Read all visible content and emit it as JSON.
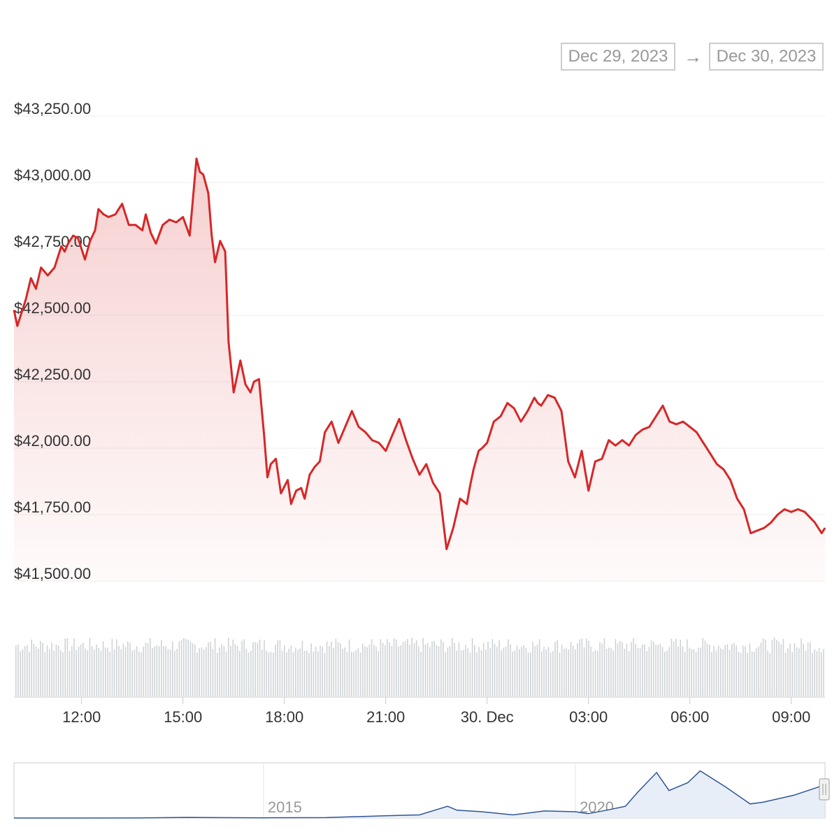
{
  "date_range": {
    "from": "Dec 29, 2023",
    "arrow": "→",
    "to": "Dec 30, 2023"
  },
  "colors": {
    "price_line": "#d62728",
    "volume_bars": "#cfd3d6",
    "grid": "#eeeeee",
    "navigator_line": "#2f5596",
    "navigator_fill": "#e8eef8"
  },
  "chart_data": {
    "type": "line",
    "title": "",
    "x_range": [
      "Dec 29, 2023 10:00",
      "Dec 30, 2023 10:00"
    ],
    "ylim": [
      41500,
      43250
    ],
    "y_ticks": [
      {
        "value": 43250,
        "label": "$43,250.00"
      },
      {
        "value": 43000,
        "label": "$43,000.00"
      },
      {
        "value": 42750,
        "label": "$42,750.00"
      },
      {
        "value": 42500,
        "label": "$42,500.00"
      },
      {
        "value": 42250,
        "label": "$42,250.00"
      },
      {
        "value": 42000,
        "label": "$42,000.00"
      },
      {
        "value": 41750,
        "label": "$41,750.00"
      },
      {
        "value": 41500,
        "label": "$41,500.00"
      }
    ],
    "x_ticks": [
      {
        "hours": 2,
        "label": "12:00"
      },
      {
        "hours": 5,
        "label": "15:00"
      },
      {
        "hours": 8,
        "label": "18:00"
      },
      {
        "hours": 11,
        "label": "21:00"
      },
      {
        "hours": 14,
        "label": "30. Dec"
      },
      {
        "hours": 17,
        "label": "03:00"
      },
      {
        "hours": 20,
        "label": "06:00"
      },
      {
        "hours": 23,
        "label": "09:00"
      }
    ],
    "series": [
      {
        "x_hours": [
          0.0,
          0.1,
          0.35,
          0.5,
          0.65,
          0.8,
          1.0,
          1.2,
          1.4,
          1.5,
          1.6,
          1.75,
          1.9,
          2.1,
          2.25,
          2.4,
          2.5,
          2.65,
          2.8,
          3.0,
          3.2,
          3.4,
          3.6,
          3.8,
          3.9,
          4.05,
          4.2,
          4.4,
          4.6,
          4.8,
          5.0,
          5.2,
          5.4,
          5.5,
          5.6,
          5.75,
          5.85,
          5.95,
          6.1,
          6.25,
          6.35,
          6.5,
          6.7,
          6.85,
          7.0,
          7.1,
          7.25,
          7.4,
          7.5,
          7.6,
          7.75,
          7.9,
          8.1,
          8.2,
          8.35,
          8.5,
          8.6,
          8.75,
          8.9,
          9.05,
          9.2,
          9.4,
          9.6,
          9.8,
          10.0,
          10.2,
          10.4,
          10.6,
          10.8,
          11.0,
          11.2,
          11.4,
          11.6,
          11.8,
          12.0,
          12.2,
          12.4,
          12.6,
          12.8,
          13.0,
          13.2,
          13.4,
          13.5,
          13.6,
          13.75,
          13.85,
          14.0,
          14.2,
          14.4,
          14.6,
          14.8,
          15.0,
          15.2,
          15.4,
          15.5,
          15.6,
          15.8,
          16.0,
          16.2,
          16.4,
          16.6,
          16.8,
          17.0,
          17.2,
          17.4,
          17.6,
          17.8,
          18.0,
          18.2,
          18.4,
          18.6,
          18.8,
          19.0,
          19.2,
          19.4,
          19.6,
          19.8,
          20.0,
          20.2,
          20.4,
          20.6,
          20.8,
          21.0,
          21.2,
          21.4,
          21.6,
          21.8,
          22.0,
          22.2,
          22.4,
          22.6,
          22.8,
          23.0,
          23.2,
          23.4,
          23.55,
          23.7,
          23.8,
          23.9,
          24.0
        ],
        "y": [
          42520,
          42460,
          42560,
          42640,
          42600,
          42680,
          42650,
          42680,
          42760,
          42740,
          42770,
          42800,
          42790,
          42710,
          42780,
          42820,
          42900,
          42880,
          42870,
          42880,
          42920,
          42840,
          42840,
          42820,
          42880,
          42810,
          42770,
          42840,
          42860,
          42850,
          42870,
          42800,
          43090,
          43040,
          43030,
          42960,
          42800,
          42700,
          42780,
          42740,
          42400,
          42210,
          42330,
          42240,
          42210,
          42250,
          42260,
          42050,
          41890,
          41940,
          41960,
          41830,
          41880,
          41790,
          41840,
          41850,
          41810,
          41900,
          41930,
          41950,
          42060,
          42100,
          42020,
          42080,
          42140,
          42080,
          42060,
          42030,
          42020,
          41990,
          42050,
          42110,
          42030,
          41960,
          41900,
          41940,
          41870,
          41830,
          41620,
          41700,
          41810,
          41790,
          41860,
          41920,
          41990,
          42000,
          42020,
          42100,
          42120,
          42170,
          42150,
          42100,
          42140,
          42190,
          42170,
          42160,
          42200,
          42190,
          42140,
          41950,
          41890,
          41990,
          41840,
          41950,
          41960,
          42030,
          42010,
          42030,
          42010,
          42050,
          42070,
          42080,
          42120,
          42160,
          42100,
          42090,
          42100,
          42080,
          42060,
          42020,
          41980,
          41940,
          41920,
          41880,
          41810,
          41770,
          41680,
          41690,
          41700,
          41720,
          41750,
          41770,
          41760,
          41770,
          41760,
          41740,
          41720,
          41700,
          41680,
          41700
        ],
        "values_note": "",
        "name": ""
      }
    ],
    "volume": [],
    "navigator": {
      "labels": [
        "2015",
        "2020"
      ],
      "x_years": [
        2011.0,
        2012.0,
        2013.0,
        2013.8,
        2014.0,
        2015.0,
        2016.0,
        2017.0,
        2017.5,
        2017.95,
        2018.1,
        2018.5,
        2019.0,
        2019.5,
        2020.0,
        2020.2,
        2020.5,
        2020.8,
        2021.0,
        2021.3,
        2021.5,
        2021.8,
        2022.0,
        2022.4,
        2022.8,
        2023.0,
        2023.5,
        2023.99
      ],
      "y_price": [
        5,
        10,
        100,
        800,
        600,
        300,
        500,
        3000,
        4000,
        15000,
        10000,
        8000,
        4000,
        9000,
        8000,
        5500,
        10000,
        15000,
        33000,
        58000,
        35000,
        45000,
        60000,
        40000,
        18000,
        20000,
        29000,
        42000
      ]
    }
  }
}
